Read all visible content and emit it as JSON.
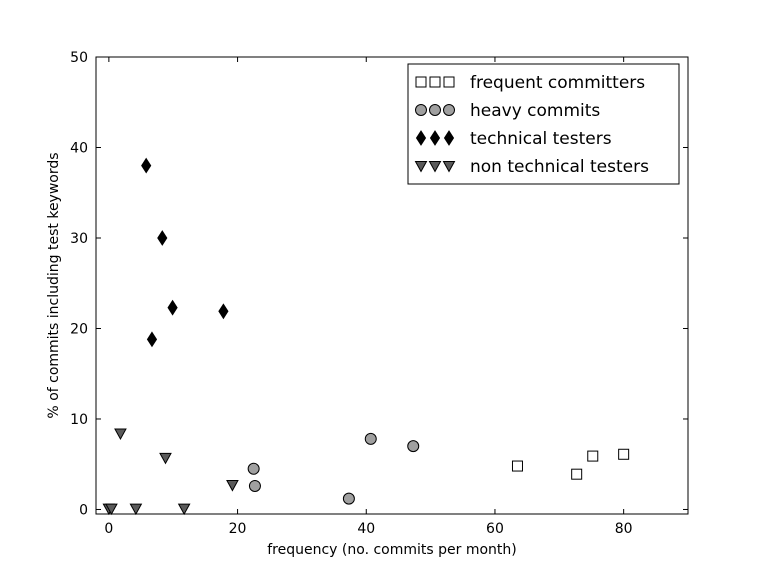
{
  "chart_data": {
    "type": "scatter",
    "xlabel": "frequency (no. commits per month)",
    "ylabel": "% of commits including test keywords",
    "xlim": [
      -2,
      90
    ],
    "ylim": [
      -0.5,
      50
    ],
    "xticks": [
      0,
      20,
      40,
      60,
      80
    ],
    "yticks": [
      0,
      10,
      20,
      30,
      40,
      50
    ],
    "xtick_labels": [
      "0",
      "20",
      "40",
      "60",
      "80"
    ],
    "ytick_labels": [
      "0",
      "10",
      "20",
      "30",
      "40",
      "50"
    ],
    "grid": false,
    "legend_position": "top-right",
    "series": [
      {
        "name": "frequent committers",
        "marker": "square",
        "color": "#ffffff",
        "points": [
          [
            63.5,
            4.8
          ],
          [
            72.7,
            3.9
          ],
          [
            75.2,
            5.9
          ],
          [
            80.0,
            6.1
          ]
        ]
      },
      {
        "name": "heavy commits",
        "marker": "circle",
        "color": "#a0a0a0",
        "points": [
          [
            22.5,
            4.5
          ],
          [
            22.7,
            2.6
          ],
          [
            37.3,
            1.2
          ],
          [
            40.7,
            7.8
          ],
          [
            47.3,
            7.0
          ]
        ]
      },
      {
        "name": "technical testers",
        "marker": "diamond",
        "color": "#000000",
        "points": [
          [
            5.8,
            38.0
          ],
          [
            6.7,
            18.8
          ],
          [
            8.3,
            30.0
          ],
          [
            9.9,
            22.3
          ],
          [
            17.8,
            21.9
          ]
        ]
      },
      {
        "name": "non technical testers",
        "marker": "triangle-down",
        "color": "#5a5a5a",
        "points": [
          [
            0.0,
            0.1
          ],
          [
            0.4,
            0.1
          ],
          [
            1.8,
            8.4
          ],
          [
            4.2,
            0.1
          ],
          [
            8.8,
            5.7
          ],
          [
            11.7,
            0.1
          ],
          [
            19.2,
            2.7
          ]
        ]
      }
    ]
  }
}
